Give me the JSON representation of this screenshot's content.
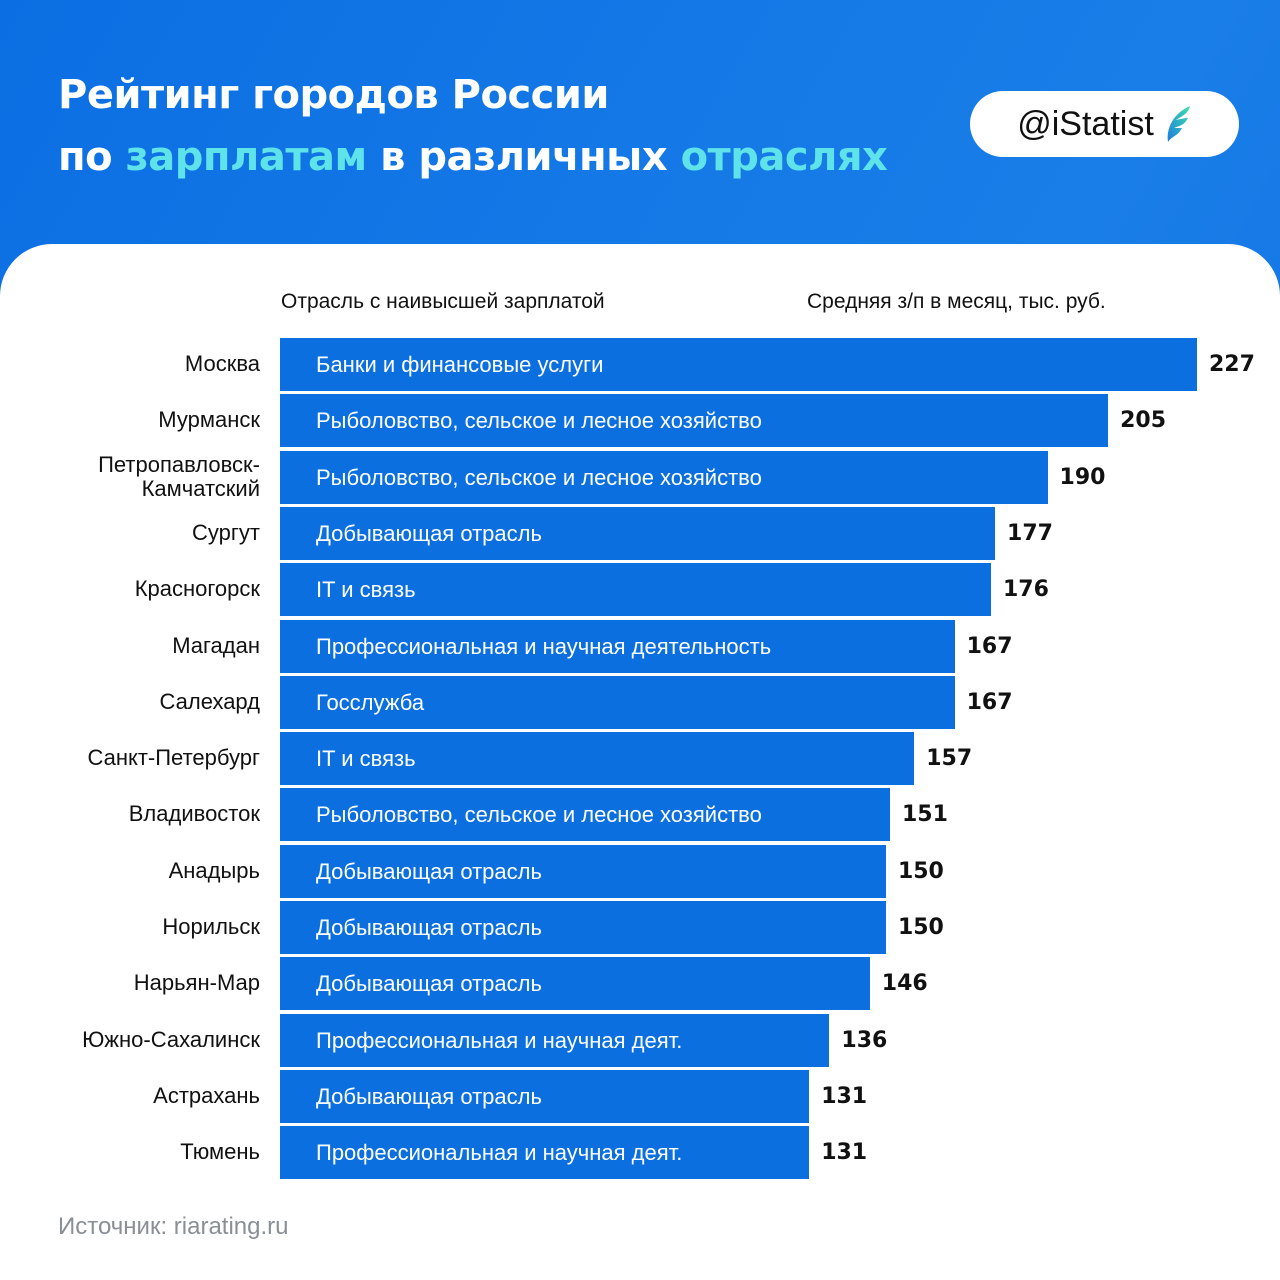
{
  "header": {
    "title_line1": "Рейтинг городов России",
    "title_line2_parts": [
      "по ",
      "зарплатам",
      " в различных ",
      "отраслях"
    ],
    "logo_text": "@iStatist",
    "accent_color": "#5fe3ea",
    "bar_color": "#0b6fe0"
  },
  "chart_data": {
    "type": "bar",
    "orientation": "horizontal",
    "title": "Рейтинг городов России по зарплатам в различных отраслях",
    "column_headers": {
      "industry": "Отрасль с наивысшей зарплатой",
      "value": "Средняя з/п в месяц, тыс. руб."
    },
    "xlim": [
      0,
      227
    ],
    "categories": [
      "Москва",
      "Мурманск",
      "Петропавловск-\nКамчатский",
      "Сургут",
      "Красногорск",
      "Магадан",
      "Салехард",
      "Санкт-Петербург",
      "Владивосток",
      "Анадырь",
      "Норильск",
      "Нарьян-Мар",
      "Южно-Сахалинск",
      "Астрахань",
      "Тюмень"
    ],
    "industries": [
      "Банки и финансовые услуги",
      "Рыболовство, сельское и лесное хозяйство",
      "Рыболовство, сельское и лесное хозяйство",
      "Добывающая отрасль",
      "IT и связь",
      "Профессиональная и научная деятельность",
      "Госслужба",
      "IT и связь",
      "Рыболовство, сельское и лесное хозяйство",
      "Добывающая отрасль",
      "Добывающая отрасль",
      "Добывающая отрасль",
      "Профессиональная и научная деят.",
      "Добывающая отрасль",
      "Профессиональная и научная деят."
    ],
    "values": [
      227,
      205,
      190,
      177,
      176,
      167,
      167,
      157,
      151,
      150,
      150,
      146,
      136,
      131,
      131
    ]
  },
  "footer": {
    "source": "Источник: riarating.ru"
  }
}
